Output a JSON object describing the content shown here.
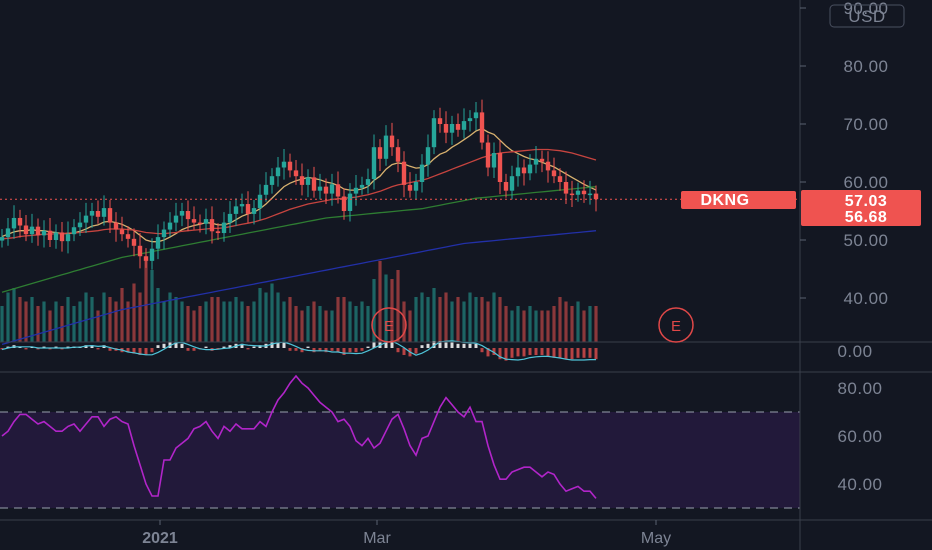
{
  "currency": "USD",
  "symbol": "DKNG",
  "colors": {
    "background": "#131722",
    "up": "#26a69a",
    "down": "#ef5350",
    "sma_short": "#d9b26f",
    "sma_mid": "#c6443f",
    "sma_long": "#2e7d32",
    "sma_200": "#2230a8",
    "rsi": "#b125c9",
    "rsi_band": "#22193a",
    "axis_text": "#7d8494",
    "tag": "#ef5350"
  },
  "price_axis": {
    "ticks": [
      "90.00",
      "80.00",
      "70.00",
      "60.00",
      "50.00",
      "40.00"
    ],
    "ylim": [
      35,
      95
    ]
  },
  "macd_axis": {
    "ticks": [
      "0.00"
    ]
  },
  "rsi_axis": {
    "ticks": [
      "80.00",
      "60.00",
      "40.00"
    ],
    "ylim": [
      28,
      92
    ],
    "upper_band": 70,
    "lower_band": 30
  },
  "x_axis": {
    "labels": [
      "2021",
      "Mar",
      "May"
    ]
  },
  "price_tags": {
    "last_label": "DKNG",
    "last_value": "57.03",
    "second_value": "56.68"
  },
  "earnings_markers": [
    {
      "label": "E"
    },
    {
      "label": "E"
    }
  ],
  "chart_data": [
    {
      "type": "candlestick",
      "title": "DKNG",
      "ylim": [
        35,
        95
      ],
      "x_labels": [
        "2021",
        "Mar",
        "May"
      ],
      "close": [
        50.5,
        52.0,
        53.8,
        52.5,
        51.0,
        52.3,
        50.8,
        51.6,
        50.0,
        51.3,
        49.8,
        51.0,
        52.2,
        53.0,
        54.2,
        55.0,
        54.0,
        55.5,
        53.0,
        51.8,
        51.0,
        50.2,
        49.0,
        47.2,
        46.4,
        48.5,
        50.5,
        51.8,
        53.0,
        54.2,
        55.0,
        53.6,
        53.0,
        52.8,
        53.6,
        51.5,
        51.2,
        53.0,
        54.5,
        55.8,
        56.2,
        54.5,
        55.5,
        57.8,
        59.5,
        61.0,
        62.5,
        63.5,
        62.0,
        61.0,
        59.5,
        60.8,
        58.5,
        59.2,
        58.0,
        59.6,
        57.5,
        55.0,
        58.0,
        59.0,
        59.5,
        60.5,
        66.0,
        64.0,
        68.0,
        66.0,
        63.5,
        59.5,
        58.5,
        60.0,
        63.0,
        66.0,
        71.0,
        70.0,
        68.5,
        70.0,
        69.0,
        70.5,
        71.0,
        72.0,
        66.8,
        62.5,
        65.0,
        60.0,
        58.5,
        61.0,
        62.5,
        61.5,
        63.0,
        64.0,
        63.5,
        62.0,
        61.0,
        60.0,
        58.0,
        57.8,
        58.5,
        57.9,
        58.0,
        57.03
      ],
      "series": [
        {
          "name": "",
          "values": [
            50.6,
            51.0,
            51.4,
            51.6,
            51.6,
            51.8,
            51.6,
            51.6,
            51.4,
            51.3,
            51.1,
            51.1,
            51.2,
            51.5,
            51.9,
            52.4,
            52.6,
            53.1,
            53.2,
            53.0,
            52.7,
            52.2,
            51.6,
            50.8,
            50.0,
            49.7,
            49.7,
            50.0,
            50.5,
            51.1,
            51.8,
            52.2,
            52.5,
            52.7,
            53.0,
            52.9,
            52.6,
            52.6,
            52.9,
            53.5,
            54.1,
            54.5,
            54.8,
            55.4,
            56.2,
            57.2,
            58.2,
            59.2,
            59.8,
            60.2,
            60.5,
            60.8,
            60.6,
            60.4,
            60.0,
            59.8,
            59.4,
            58.8,
            58.6,
            58.6,
            58.8,
            59.2,
            60.3,
            61.0,
            62.2,
            63.0,
            63.3,
            63.1,
            62.7,
            62.4,
            62.5,
            63.0,
            64.0,
            64.8,
            65.2,
            66.0,
            66.6,
            67.3,
            68.0,
            68.8,
            69.2,
            68.6,
            68.2,
            67.2,
            66.2,
            65.4,
            64.9,
            64.4,
            64.0,
            63.8,
            63.4,
            63.0,
            62.6,
            62.0,
            61.4,
            60.8,
            60.2,
            59.6,
            59.1,
            58.6
          ]
        },
        {
          "name": "",
          "values": [
            50.2,
            50.3,
            50.4,
            50.6,
            50.7,
            50.8,
            50.9,
            51.0,
            51.0,
            51.1,
            51.1,
            51.2,
            51.2,
            51.3,
            51.4,
            51.5,
            51.6,
            51.8,
            51.9,
            51.9,
            51.9,
            51.8,
            51.7,
            51.5,
            51.3,
            51.2,
            51.1,
            51.1,
            51.2,
            51.3,
            51.5,
            51.6,
            51.7,
            51.8,
            51.9,
            52.0,
            52.0,
            52.1,
            52.3,
            52.5,
            52.7,
            52.9,
            53.1,
            53.4,
            53.7,
            54.1,
            54.5,
            54.9,
            55.3,
            55.6,
            55.9,
            56.2,
            56.4,
            56.6,
            56.8,
            57.0,
            57.1,
            57.2,
            57.3,
            57.4,
            57.6,
            57.8,
            58.1,
            58.4,
            58.8,
            59.2,
            59.5,
            59.7,
            59.9,
            60.1,
            60.3,
            60.6,
            61.0,
            61.4,
            61.8,
            62.2,
            62.6,
            63.0,
            63.4,
            63.8,
            64.2,
            64.5,
            64.8,
            65.0,
            65.1,
            65.2,
            65.3,
            65.4,
            65.5,
            65.6,
            65.6,
            65.6,
            65.5,
            65.4,
            65.2,
            65.0,
            64.7,
            64.4,
            64.1,
            63.8
          ]
        },
        {
          "name": "",
          "values": [
            41.0,
            41.3,
            41.6,
            41.9,
            42.2,
            42.5,
            42.8,
            43.1,
            43.4,
            43.7,
            44.0,
            44.3,
            44.6,
            44.9,
            45.2,
            45.5,
            45.8,
            46.1,
            46.4,
            46.7,
            47.0,
            47.2,
            47.4,
            47.6,
            47.8,
            48.0,
            48.2,
            48.4,
            48.6,
            48.8,
            49.0,
            49.2,
            49.4,
            49.6,
            49.8,
            50.0,
            50.2,
            50.4,
            50.6,
            50.8,
            51.0,
            51.2,
            51.4,
            51.6,
            51.8,
            52.0,
            52.2,
            52.4,
            52.6,
            52.8,
            53.0,
            53.2,
            53.4,
            53.6,
            53.8,
            53.9,
            54.0,
            54.1,
            54.2,
            54.3,
            54.4,
            54.5,
            54.6,
            54.7,
            54.8,
            54.9,
            55.0,
            55.1,
            55.2,
            55.3,
            55.4,
            55.6,
            55.8,
            56.0,
            56.2,
            56.4,
            56.6,
            56.8,
            57.0,
            57.2,
            57.3,
            57.4,
            57.5,
            57.6,
            57.7,
            57.8,
            57.9,
            58.0,
            58.1,
            58.2,
            58.3,
            58.4,
            58.5,
            58.6,
            58.7,
            58.8,
            58.9,
            59.0,
            59.1,
            59.2
          ]
        },
        {
          "name": "",
          "values": [
            32.0,
            32.3,
            32.6,
            32.9,
            33.2,
            33.5,
            33.8,
            34.1,
            34.4,
            34.7,
            35.0,
            35.3,
            35.6,
            35.9,
            36.2,
            36.5,
            36.8,
            37.1,
            37.4,
            37.7,
            38.0,
            38.2,
            38.4,
            38.6,
            38.8,
            39.0,
            39.2,
            39.4,
            39.6,
            39.8,
            40.0,
            40.2,
            40.4,
            40.6,
            40.8,
            41.0,
            41.2,
            41.4,
            41.6,
            41.8,
            42.0,
            42.2,
            42.4,
            42.6,
            42.8,
            43.0,
            43.2,
            43.4,
            43.6,
            43.8,
            44.0,
            44.2,
            44.4,
            44.6,
            44.8,
            45.0,
            45.2,
            45.4,
            45.6,
            45.8,
            46.0,
            46.2,
            46.4,
            46.6,
            46.8,
            47.0,
            47.2,
            47.4,
            47.6,
            47.8,
            48.0,
            48.2,
            48.4,
            48.6,
            48.8,
            49.0,
            49.2,
            49.4,
            49.5,
            49.6,
            49.7,
            49.8,
            49.9,
            50.0,
            50.1,
            50.2,
            50.3,
            50.4,
            50.5,
            50.6,
            50.7,
            50.8,
            50.9,
            51.0,
            51.1,
            51.2,
            51.3,
            51.4,
            51.5,
            51.6
          ]
        }
      ]
    },
    {
      "type": "bar",
      "title": "",
      "values": [
        0.4,
        0.55,
        0.6,
        0.5,
        0.45,
        0.5,
        0.4,
        0.45,
        0.35,
        0.45,
        0.4,
        0.5,
        0.4,
        0.45,
        0.55,
        0.5,
        0.35,
        0.55,
        0.5,
        0.45,
        0.6,
        0.45,
        0.65,
        0.55,
        0.9,
        0.8,
        0.6,
        0.45,
        0.55,
        0.5,
        0.45,
        0.4,
        0.35,
        0.4,
        0.45,
        0.5,
        0.5,
        0.45,
        0.45,
        0.5,
        0.45,
        0.4,
        0.45,
        0.6,
        0.55,
        0.65,
        0.55,
        0.45,
        0.5,
        0.4,
        0.35,
        0.4,
        0.45,
        0.4,
        0.35,
        0.35,
        0.5,
        0.5,
        0.45,
        0.4,
        0.45,
        0.4,
        0.7,
        0.9,
        0.75,
        0.7,
        0.8,
        0.45,
        0.35,
        0.5,
        0.55,
        0.5,
        0.6,
        0.5,
        0.55,
        0.45,
        0.5,
        0.45,
        0.55,
        0.5,
        0.5,
        0.45,
        0.55,
        0.5,
        0.4,
        0.35,
        0.4,
        0.35,
        0.4,
        0.35,
        0.35,
        0.35,
        0.4,
        0.5,
        0.45,
        0.4,
        0.45,
        0.35,
        0.4,
        0.4
      ]
    },
    {
      "type": "bar",
      "title": "",
      "values": [
        -0.1,
        0.1,
        0.2,
        0.1,
        -0.1,
        0.1,
        -0.1,
        0.1,
        -0.1,
        0.1,
        -0.1,
        0.1,
        0.1,
        0.1,
        0.2,
        0.2,
        -0.1,
        0.2,
        -0.2,
        -0.2,
        -0.3,
        -0.3,
        -0.4,
        -0.5,
        -0.5,
        -0.3,
        0.2,
        0.3,
        0.4,
        0.4,
        0.3,
        -0.2,
        -0.2,
        -0.1,
        0.1,
        -0.2,
        -0.1,
        0.1,
        0.2,
        0.3,
        0.3,
        -0.1,
        0.1,
        0.2,
        0.3,
        0.4,
        0.4,
        0.4,
        -0.2,
        -0.2,
        -0.3,
        0.1,
        -0.3,
        -0.2,
        -0.3,
        -0.2,
        -0.3,
        -0.5,
        -0.3,
        -0.3,
        -0.2,
        0.1,
        0.4,
        0.4,
        0.5,
        0.4,
        -0.3,
        -0.5,
        -0.6,
        -0.4,
        0.2,
        0.3,
        0.5,
        0.5,
        0.4,
        0.4,
        0.3,
        0.3,
        0.3,
        0.3,
        -0.3,
        -0.6,
        -0.5,
        -0.8,
        -0.9,
        -0.7,
        -0.6,
        -0.6,
        -0.5,
        -0.5,
        -0.5,
        -0.6,
        -0.7,
        -0.7,
        -0.8,
        -0.8,
        -0.7,
        -0.7,
        -0.7,
        -0.8
      ]
    },
    {
      "type": "line",
      "title": "",
      "ylim": [
        28,
        92
      ],
      "series": [
        {
          "name": "",
          "values": [
            60,
            62,
            66,
            69,
            69,
            67,
            65,
            66,
            64,
            62,
            62,
            64,
            65,
            62,
            65,
            68,
            68,
            64,
            67,
            68,
            66,
            65,
            56,
            48,
            40,
            35,
            35,
            50,
            50,
            55,
            57,
            59,
            63,
            64,
            66,
            62,
            59,
            64,
            62,
            65,
            63,
            63,
            63,
            66,
            64,
            70,
            75,
            78,
            82,
            85,
            82,
            80,
            77,
            74,
            72,
            70,
            66,
            67,
            64,
            58,
            56,
            59,
            55,
            57,
            62,
            67,
            69,
            63,
            56,
            52,
            59,
            60,
            66,
            72,
            76,
            73,
            70,
            68,
            72,
            66,
            66,
            56,
            48,
            42,
            42,
            45,
            46,
            47,
            47,
            45,
            43,
            45,
            44,
            40,
            37,
            38,
            39,
            37,
            37,
            34
          ]
        }
      ]
    }
  ]
}
